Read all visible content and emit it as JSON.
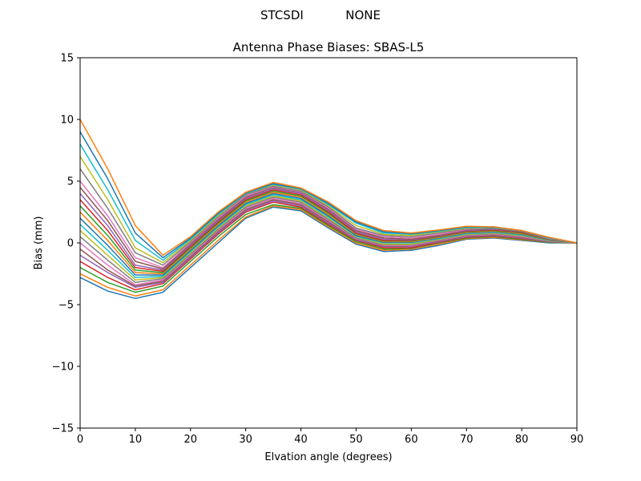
{
  "chart_data": {
    "type": "line",
    "suptitle": "STCSDI           NONE",
    "title": "Antenna Phase Biases: SBAS-L5",
    "xlabel": "Elvation angle (degrees)",
    "ylabel": "Bias (mm)",
    "xlim": [
      0,
      90
    ],
    "ylim": [
      -15,
      15
    ],
    "xticks": [
      0,
      10,
      20,
      30,
      40,
      50,
      60,
      70,
      80,
      90
    ],
    "yticks": [
      -15,
      -10,
      -5,
      0,
      5,
      10,
      15
    ],
    "grid": false,
    "legend": "none",
    "x": [
      0,
      5,
      10,
      15,
      20,
      25,
      30,
      35,
      40,
      45,
      50,
      55,
      60,
      65,
      70,
      75,
      80,
      85,
      90
    ],
    "series_colors": [
      "#1f77b4",
      "#ff7f0e",
      "#2ca02c",
      "#d62728",
      "#9467bd",
      "#8c564b",
      "#e377c2",
      "#7f7f7f",
      "#bcbd22",
      "#17becf"
    ],
    "series": [
      {
        "values": [
          -2.8,
          -3.9,
          -4.5,
          -4.0,
          -2.0,
          0.0,
          2.0,
          2.9,
          2.6,
          1.2,
          -0.1,
          -0.7,
          -0.6,
          -0.2,
          0.3,
          0.4,
          0.2,
          0.0,
          0.0
        ]
      },
      {
        "values": [
          -2.5,
          -3.6,
          -4.3,
          -3.8,
          -1.8,
          0.2,
          2.1,
          3.0,
          2.7,
          1.3,
          0.0,
          -0.6,
          -0.5,
          -0.1,
          0.35,
          0.45,
          0.25,
          0.05,
          0.0
        ]
      },
      {
        "values": [
          -2.0,
          -3.2,
          -4.0,
          -3.5,
          -1.5,
          0.5,
          2.3,
          3.1,
          2.8,
          1.4,
          0.1,
          -0.5,
          -0.45,
          0.0,
          0.4,
          0.5,
          0.3,
          0.05,
          0.0
        ]
      },
      {
        "values": [
          -1.5,
          -2.8,
          -3.8,
          -3.3,
          -1.3,
          0.7,
          2.5,
          3.3,
          2.9,
          1.5,
          0.2,
          -0.4,
          -0.4,
          0.05,
          0.45,
          0.55,
          0.35,
          0.08,
          0.0
        ]
      },
      {
        "values": [
          -1.0,
          -2.4,
          -3.6,
          -3.2,
          -1.2,
          0.8,
          2.6,
          3.4,
          3.0,
          1.6,
          0.25,
          -0.3,
          -0.3,
          0.1,
          0.5,
          0.6,
          0.4,
          0.1,
          0.0
        ]
      },
      {
        "values": [
          -0.5,
          -2.2,
          -3.5,
          -3.1,
          -1.1,
          0.9,
          2.7,
          3.5,
          3.1,
          1.7,
          0.3,
          -0.25,
          -0.25,
          0.15,
          0.55,
          0.65,
          0.45,
          0.12,
          0.0
        ]
      },
      {
        "values": [
          0.0,
          -1.8,
          -3.4,
          -3.0,
          -1.0,
          1.0,
          2.8,
          3.6,
          3.2,
          1.8,
          0.35,
          -0.2,
          -0.2,
          0.2,
          0.6,
          0.7,
          0.5,
          0.14,
          0.0
        ]
      },
      {
        "values": [
          0.5,
          -1.4,
          -3.2,
          -2.9,
          -0.9,
          1.1,
          2.9,
          3.7,
          3.3,
          1.9,
          0.4,
          -0.15,
          -0.15,
          0.25,
          0.65,
          0.75,
          0.55,
          0.16,
          0.0
        ]
      },
      {
        "values": [
          1.0,
          -1.0,
          -3.0,
          -2.8,
          -0.8,
          1.2,
          3.0,
          3.8,
          3.4,
          2.0,
          0.5,
          -0.1,
          -0.1,
          0.3,
          0.7,
          0.8,
          0.6,
          0.18,
          0.0
        ]
      },
      {
        "values": [
          1.5,
          -0.6,
          -2.8,
          -2.7,
          -0.7,
          1.3,
          3.1,
          3.9,
          3.5,
          2.1,
          0.55,
          0.0,
          0.0,
          0.35,
          0.75,
          0.85,
          0.65,
          0.2,
          0.0
        ]
      },
      {
        "values": [
          2.0,
          -0.2,
          -2.6,
          -2.6,
          -0.6,
          1.4,
          3.2,
          4.0,
          3.6,
          2.2,
          0.6,
          0.05,
          0.05,
          0.4,
          0.8,
          0.9,
          0.7,
          0.22,
          0.0
        ]
      },
      {
        "values": [
          2.5,
          0.2,
          -2.4,
          -2.5,
          -0.5,
          1.5,
          3.3,
          4.1,
          3.7,
          2.3,
          0.7,
          0.1,
          0.1,
          0.45,
          0.85,
          0.95,
          0.75,
          0.24,
          0.0
        ]
      },
      {
        "values": [
          3.0,
          0.6,
          -2.2,
          -2.4,
          -0.4,
          1.6,
          3.4,
          4.2,
          3.8,
          2.4,
          0.75,
          0.15,
          0.15,
          0.5,
          0.9,
          1.0,
          0.8,
          0.26,
          0.0
        ]
      },
      {
        "values": [
          3.5,
          1.0,
          -2.0,
          -2.3,
          -0.3,
          1.7,
          3.5,
          4.3,
          3.9,
          2.5,
          0.8,
          0.2,
          0.2,
          0.55,
          0.95,
          1.05,
          0.85,
          0.28,
          0.0
        ]
      },
      {
        "values": [
          4.0,
          1.4,
          -1.8,
          -2.2,
          -0.2,
          1.8,
          3.6,
          4.4,
          4.0,
          2.6,
          0.9,
          0.3,
          0.25,
          0.6,
          1.0,
          1.1,
          0.9,
          0.3,
          0.0
        ]
      },
      {
        "values": [
          4.5,
          1.8,
          -1.5,
          -2.1,
          -0.1,
          1.9,
          3.7,
          4.5,
          4.1,
          2.7,
          1.0,
          0.4,
          0.3,
          0.65,
          1.05,
          1.15,
          0.9,
          0.32,
          0.0
        ]
      },
      {
        "values": [
          5.0,
          2.2,
          -1.2,
          -2.0,
          0.0,
          2.0,
          3.8,
          4.55,
          4.15,
          2.8,
          1.1,
          0.5,
          0.4,
          0.7,
          1.1,
          1.2,
          0.95,
          0.34,
          0.0
        ]
      },
      {
        "values": [
          6.0,
          2.8,
          -0.8,
          -1.8,
          0.1,
          2.1,
          3.9,
          4.6,
          4.2,
          2.9,
          1.2,
          0.6,
          0.5,
          0.8,
          1.15,
          1.2,
          0.95,
          0.36,
          0.0
        ]
      },
      {
        "values": [
          7.0,
          3.5,
          -0.4,
          -1.6,
          0.2,
          2.2,
          4.0,
          4.7,
          4.3,
          3.0,
          1.4,
          0.7,
          0.6,
          0.9,
          1.2,
          1.25,
          1.0,
          0.38,
          0.0
        ]
      },
      {
        "values": [
          8.0,
          4.3,
          0.2,
          -1.4,
          0.3,
          2.3,
          4.0,
          4.75,
          4.35,
          3.1,
          1.6,
          0.8,
          0.7,
          0.95,
          1.25,
          1.25,
          1.0,
          0.4,
          0.0
        ]
      },
      {
        "values": [
          9.0,
          5.2,
          0.8,
          -1.2,
          0.4,
          2.4,
          4.05,
          4.8,
          4.4,
          3.2,
          1.7,
          0.9,
          0.75,
          1.0,
          1.3,
          1.3,
          1.0,
          0.42,
          0.0
        ]
      },
      {
        "values": [
          10.0,
          6.0,
          1.4,
          -1.0,
          0.5,
          2.5,
          4.1,
          4.9,
          4.45,
          3.3,
          1.8,
          1.0,
          0.8,
          1.05,
          1.35,
          1.3,
          1.0,
          0.45,
          0.0
        ]
      }
    ]
  }
}
